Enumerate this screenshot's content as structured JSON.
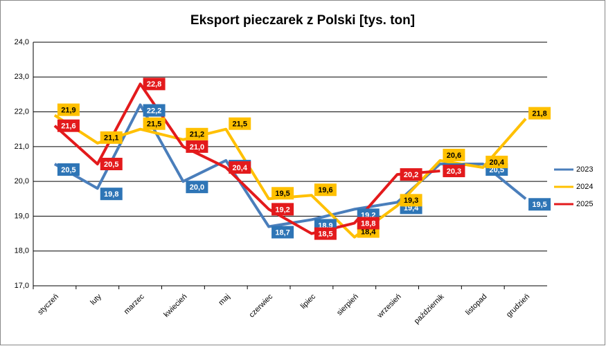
{
  "chart_data": {
    "type": "line",
    "title": "Eksport pieczarek z Polski [tys. ton]",
    "categories": [
      "styczeń",
      "luty",
      "marzec",
      "kwiecień",
      "maj",
      "czerwiec",
      "lipiec",
      "sierpień",
      "wrzesień",
      "październik",
      "listopad",
      "grudzień"
    ],
    "series": [
      {
        "name": "2023",
        "color": "#4a7ebb",
        "label_color": "#2e75b6",
        "label_text_color": "#ffffff",
        "values": [
          20.5,
          19.8,
          22.2,
          20.0,
          20.6,
          18.7,
          18.9,
          19.2,
          19.4,
          20.5,
          20.5,
          19.5
        ],
        "value_labels": [
          "20,5",
          "19,8",
          "22,2",
          "20,0",
          "20,6",
          "18,7",
          "18,9",
          "19,2",
          "19,4",
          "20,5",
          "20,5",
          "19,5"
        ]
      },
      {
        "name": "2024",
        "color": "#ffc000",
        "label_color": "#ffc000",
        "label_text_color": "#000000",
        "values": [
          21.9,
          21.1,
          21.5,
          21.2,
          21.5,
          19.5,
          19.6,
          18.4,
          19.3,
          20.6,
          20.4,
          21.8
        ],
        "value_labels": [
          "21,9",
          "21,1",
          "21,5",
          "21,2",
          "21,5",
          "19,5",
          "19,6",
          "18,4",
          "19,3",
          "20,6",
          "20,4",
          "21,8"
        ]
      },
      {
        "name": "2025",
        "color": "#e31a1c",
        "label_color": "#e31a1c",
        "label_text_color": "#ffffff",
        "values": [
          21.6,
          20.5,
          22.8,
          21.0,
          20.4,
          19.2,
          18.5,
          18.8,
          20.2,
          20.3,
          null,
          null
        ],
        "value_labels": [
          "21,6",
          "20,5",
          "22,8",
          "21,0",
          "20,4",
          "19,2",
          "18,5",
          "18,8",
          "20,2",
          "20,3",
          null,
          null
        ]
      }
    ],
    "ylim": [
      17,
      24
    ],
    "yticks": [
      {
        "value": 17,
        "label": "17,0"
      },
      {
        "value": 18,
        "label": "18,0"
      },
      {
        "value": 19,
        "label": "19,0"
      },
      {
        "value": 20,
        "label": "20,0"
      },
      {
        "value": 21,
        "label": "21,0"
      },
      {
        "value": 22,
        "label": "22,0"
      },
      {
        "value": 23,
        "label": "23,0"
      },
      {
        "value": 24,
        "label": "24,0"
      }
    ],
    "grid": true,
    "legend": "right"
  }
}
